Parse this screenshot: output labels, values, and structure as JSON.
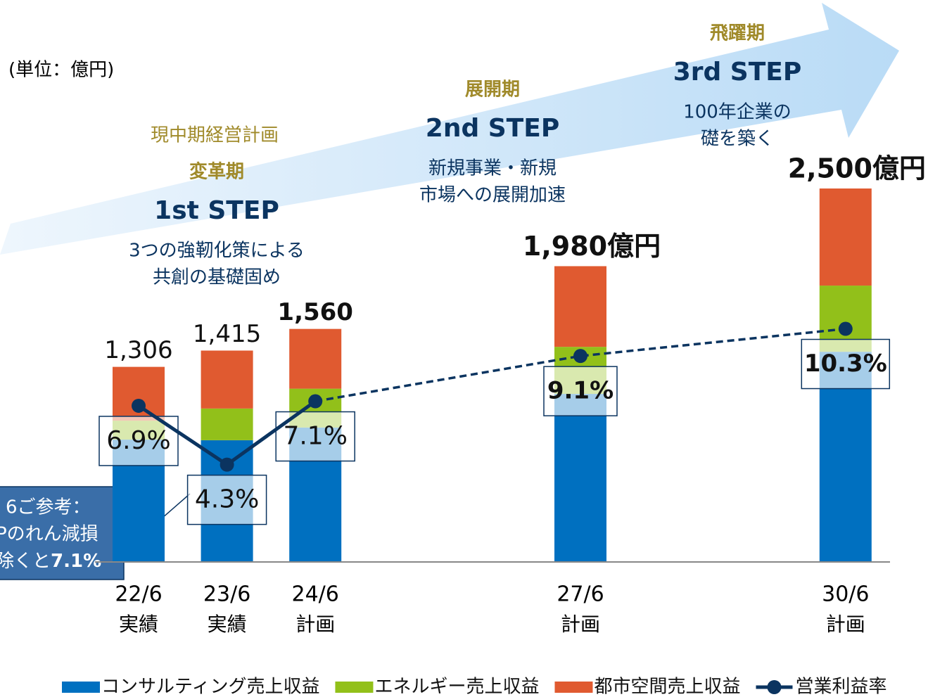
{
  "chart_data": {
    "type": "bar",
    "unit_label": "(単位：億円)",
    "categories": [
      "22/6",
      "23/6",
      "24/6",
      "27/6",
      "30/6"
    ],
    "category_sublabels": [
      "実績",
      "実績",
      "計画",
      "計画",
      "計画"
    ],
    "series": [
      {
        "name": "コンサルティング売上収益",
        "color": "#0070c0",
        "values": [
          819,
          815,
          900,
          1125,
          1407
        ]
      },
      {
        "name": "エネルギー売上収益",
        "color": "#92c01a",
        "values": [
          127,
          212,
          260,
          315,
          443
        ]
      },
      {
        "name": "都市空間売上収益",
        "color": "#e05a30",
        "values": [
          360,
          388,
          400,
          540,
          650
        ]
      },
      {
        "name": "営業利益率",
        "color": "#0b3460",
        "axis": "y2",
        "values": [
          6.9,
          4.3,
          7.1,
          9.1,
          10.3
        ],
        "value_labels": [
          "6.9%",
          "4.3%",
          "7.1%",
          "9.1%",
          "10.3%"
        ]
      }
    ],
    "totals": [
      1306,
      1415,
      1560,
      1980,
      2500
    ],
    "total_labels": [
      "1,306",
      "1,415",
      "1,560",
      "1,980億円",
      "2,500億円"
    ],
    "ylim": [
      0,
      2500
    ],
    "y2lim": [
      0,
      16.5
    ],
    "phases": [
      {
        "period": "変革期",
        "step": "1st STEP",
        "lines": [
          "3つの強靭化策による",
          "共創の基礎固め"
        ],
        "note": "現中期経営計画"
      },
      {
        "period": "展開期",
        "step": "2nd STEP",
        "lines": [
          "新規事業・新規",
          "市場への展開加速"
        ]
      },
      {
        "period": "飛躍期",
        "step": "3rd STEP",
        "lines": [
          "100年企業の",
          "礎を築く"
        ]
      }
    ],
    "note": {
      "lines": [
        "6ご参考：",
        "Pのれん減損",
        "除くと"
      ],
      "emphasis": "7.1%"
    }
  }
}
